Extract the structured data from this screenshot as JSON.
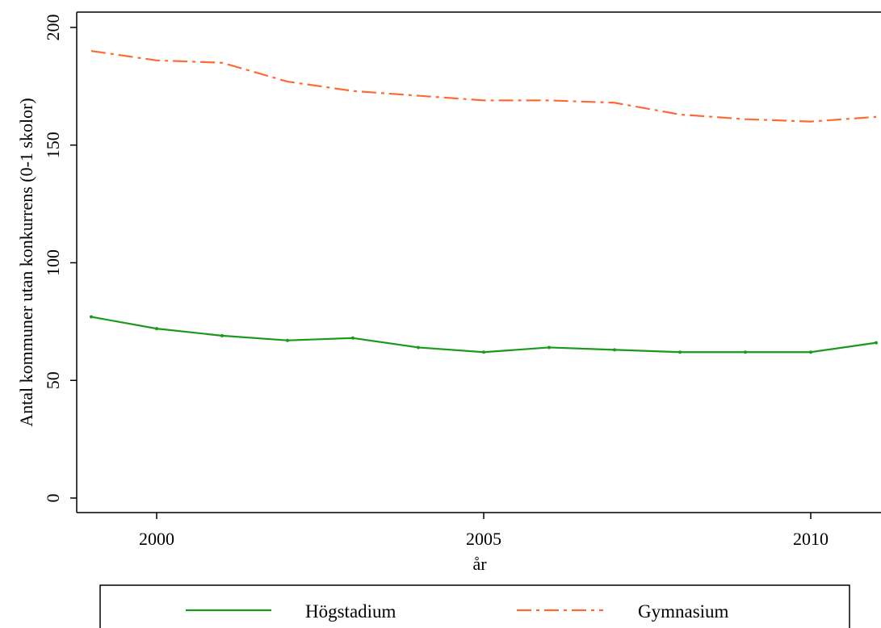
{
  "chart_data": {
    "type": "line",
    "xlabel": "år",
    "ylabel": "Antal kommuner utan konkurrens (0-1 skolor)",
    "x": [
      1999,
      2000,
      2001,
      2002,
      2003,
      2004,
      2005,
      2006,
      2007,
      2008,
      2009,
      2010,
      2011
    ],
    "xlim": [
      1999,
      2011
    ],
    "ylim": [
      0,
      200
    ],
    "xticks": [
      2000,
      2005,
      2010
    ],
    "yticks": [
      0,
      50,
      100,
      150,
      200
    ],
    "grid": false,
    "legend_position": "bottom",
    "series": [
      {
        "name": "Högstadium",
        "values": [
          77,
          72,
          69,
          67,
          68,
          64,
          62,
          64,
          63,
          62,
          62,
          62,
          66
        ],
        "color": "#1a9a1a",
        "style": "solid"
      },
      {
        "name": "Gymnasium",
        "values": [
          190,
          186,
          185,
          177,
          173,
          171,
          169,
          169,
          168,
          163,
          161,
          160,
          162
        ],
        "color": "#ff6a33",
        "style": "dash-dot"
      }
    ]
  }
}
